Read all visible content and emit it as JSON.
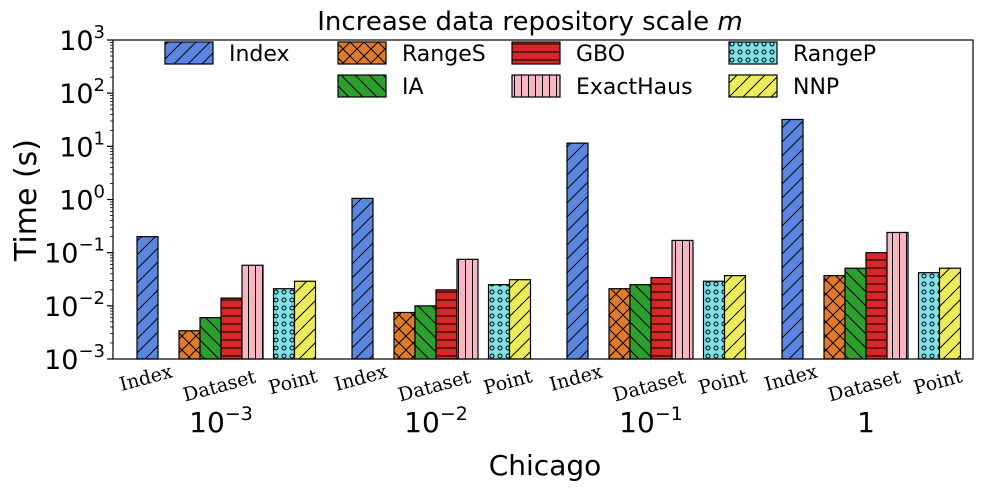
{
  "chart_data": {
    "type": "bar",
    "scale": "log",
    "title_prefix": "Increase data repository scale ",
    "title_var": "m",
    "ylabel": "Time (s)",
    "xlabel": "Chicago",
    "ylim": [
      0.001,
      1000
    ],
    "yticks": [
      {
        "base": "10",
        "exp": "−3",
        "value": 0.001
      },
      {
        "base": "10",
        "exp": "−2",
        "value": 0.01
      },
      {
        "base": "10",
        "exp": "−1",
        "value": 0.1
      },
      {
        "base": "10",
        "exp": "0",
        "value": 1
      },
      {
        "base": "10",
        "exp": "1",
        "value": 10
      },
      {
        "base": "10",
        "exp": "2",
        "value": 100
      },
      {
        "base": "10",
        "exp": "3",
        "value": 1000
      }
    ],
    "subgroup_labels": [
      "Index",
      "Dataset",
      "Point"
    ],
    "groups": [
      {
        "label_base": "10",
        "label_exp": "−3",
        "values": {
          "Index": 0.2,
          "RangeS": 0.0034,
          "IA": 0.006,
          "GBO": 0.014,
          "ExactHaus": 0.058,
          "RangeP": 0.021,
          "NNP": 0.029
        }
      },
      {
        "label_base": "10",
        "label_exp": "−2",
        "values": {
          "Index": 1.05,
          "RangeS": 0.0075,
          "IA": 0.01,
          "GBO": 0.02,
          "ExactHaus": 0.075,
          "RangeP": 0.025,
          "NNP": 0.031
        }
      },
      {
        "label_base": "10",
        "label_exp": "−1",
        "values": {
          "Index": 11.5,
          "RangeS": 0.021,
          "IA": 0.025,
          "GBO": 0.034,
          "ExactHaus": 0.17,
          "RangeP": 0.029,
          "NNP": 0.037
        }
      },
      {
        "label_base": "1",
        "label_exp": "",
        "values": {
          "Index": 32,
          "RangeS": 0.037,
          "IA": 0.051,
          "GBO": 0.1,
          "ExactHaus": 0.24,
          "RangeP": 0.042,
          "NNP": 0.051
        }
      }
    ],
    "series": [
      {
        "name": "Index",
        "subgroup": "Index",
        "color": "#5b86e0",
        "hatch": "diag"
      },
      {
        "name": "RangeS",
        "subgroup": "Dataset",
        "color": "#e07b2b",
        "hatch": "cross"
      },
      {
        "name": "IA",
        "subgroup": "Dataset",
        "color": "#2ca02c",
        "hatch": "back"
      },
      {
        "name": "GBO",
        "subgroup": "Dataset",
        "color": "#d62728",
        "hatch": "horiz"
      },
      {
        "name": "ExactHaus",
        "subgroup": "Dataset",
        "color": "#f7b6c2",
        "hatch": "vert"
      },
      {
        "name": "RangeP",
        "subgroup": "Point",
        "color": "#7fe3ea",
        "hatch": "dots"
      },
      {
        "name": "NNP",
        "subgroup": "Point",
        "color": "#eded5c",
        "hatch": "diag"
      }
    ],
    "legend_order": [
      "Index",
      "RangeS",
      "GBO",
      "RangeP",
      "IA",
      "ExactHaus",
      "NNP"
    ],
    "legend_position": "top"
  }
}
